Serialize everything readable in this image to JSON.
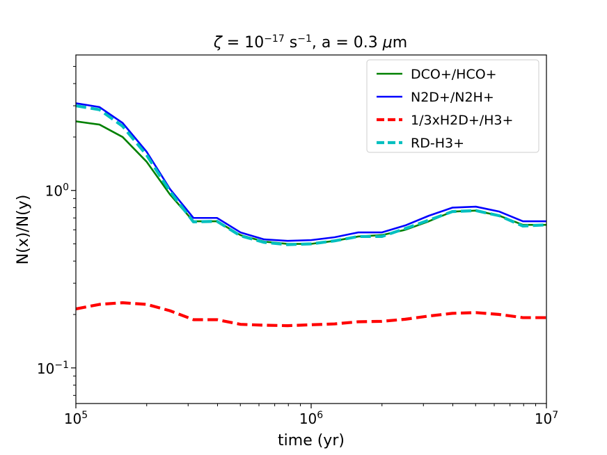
{
  "chart_data": {
    "type": "line",
    "title": {
      "symbol": "ζ",
      "eq1": " = 10",
      "exp1": "−17",
      "unit1": " s",
      "exp2": "−1",
      "rest": ", a = 0.3 ",
      "mu": "μ",
      "unit2": "m"
    },
    "xlabel": "time (yr)",
    "ylabel": "N(x)/N(y)",
    "xscale": "log",
    "yscale": "log",
    "xlim": [
      100000,
      10000000
    ],
    "ylim": [
      0.063,
      5.8
    ],
    "grid": false,
    "legend_position": "top-right",
    "x_ticks": [
      {
        "value": 100000,
        "base": "10",
        "exp": "5"
      },
      {
        "value": 1000000,
        "base": "10",
        "exp": "6"
      },
      {
        "value": 10000000,
        "base": "10",
        "exp": "7"
      }
    ],
    "y_ticks": [
      {
        "value": 0.1,
        "base": "10",
        "exp": "−1"
      },
      {
        "value": 1,
        "base": "10",
        "exp": "0"
      }
    ],
    "x": [
      100000,
      126000,
      158000,
      200000,
      251000,
      316000,
      398000,
      501000,
      631000,
      794000,
      1000000,
      1259000,
      1585000,
      1995000,
      2512000,
      3162000,
      3981000,
      5012000,
      6310000,
      7943000,
      10000000
    ],
    "series": [
      {
        "name": "DCO+/HCO+",
        "color": "#008000",
        "dash": "solid",
        "values": [
          2.45,
          2.35,
          2.0,
          1.45,
          0.95,
          0.67,
          0.67,
          0.56,
          0.515,
          0.5,
          0.5,
          0.52,
          0.55,
          0.56,
          0.6,
          0.67,
          0.76,
          0.77,
          0.72,
          0.64,
          0.64
        ]
      },
      {
        "name": "N2D+/N2H+",
        "color": "#0000ff",
        "dash": "solid",
        "values": [
          3.1,
          2.95,
          2.4,
          1.65,
          1.02,
          0.7,
          0.7,
          0.58,
          0.53,
          0.52,
          0.525,
          0.545,
          0.58,
          0.58,
          0.635,
          0.72,
          0.8,
          0.81,
          0.76,
          0.67,
          0.67
        ]
      },
      {
        "name": "1/3xH2D+/H3+",
        "color": "#ff0000",
        "dash": "dashed",
        "values": [
          0.215,
          0.228,
          0.233,
          0.228,
          0.21,
          0.187,
          0.187,
          0.176,
          0.174,
          0.173,
          0.175,
          0.177,
          0.182,
          0.183,
          0.188,
          0.196,
          0.203,
          0.205,
          0.2,
          0.192,
          0.192
        ]
      },
      {
        "name": "RD-H3+",
        "color": "#00bfbf",
        "dash": "dashed",
        "values": [
          3.0,
          2.85,
          2.3,
          1.58,
          0.99,
          0.665,
          0.67,
          0.555,
          0.51,
          0.495,
          0.5,
          0.52,
          0.55,
          0.55,
          0.61,
          0.68,
          0.76,
          0.77,
          0.72,
          0.63,
          0.64
        ]
      }
    ]
  }
}
